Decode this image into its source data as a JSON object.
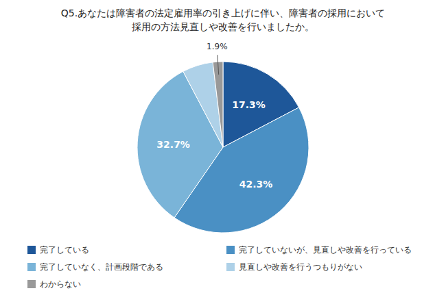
{
  "chart_data": {
    "type": "pie",
    "title": "Q5.あなたは障害者の法定雇用率の引き上げに伴い、障害者の採用において",
    "subtitle": "採用の方法見直しや改善を行いましたか。",
    "categories": [
      "完了している",
      "完了していないが、見直しや改善を行っている",
      "完了していなく、計画段階である",
      "見直しや改善を行うつもりがない",
      "わからない"
    ],
    "values": [
      17.3,
      42.3,
      32.7,
      5.8,
      1.9
    ],
    "value_labels": [
      "17.3%",
      "42.3%",
      "32.7%",
      null,
      "1.9%"
    ],
    "colors": [
      "#1e5799",
      "#4a90c4",
      "#7ab4d8",
      "#aed1e8",
      "#999999"
    ],
    "data_labels": true,
    "legend": "bottom"
  }
}
